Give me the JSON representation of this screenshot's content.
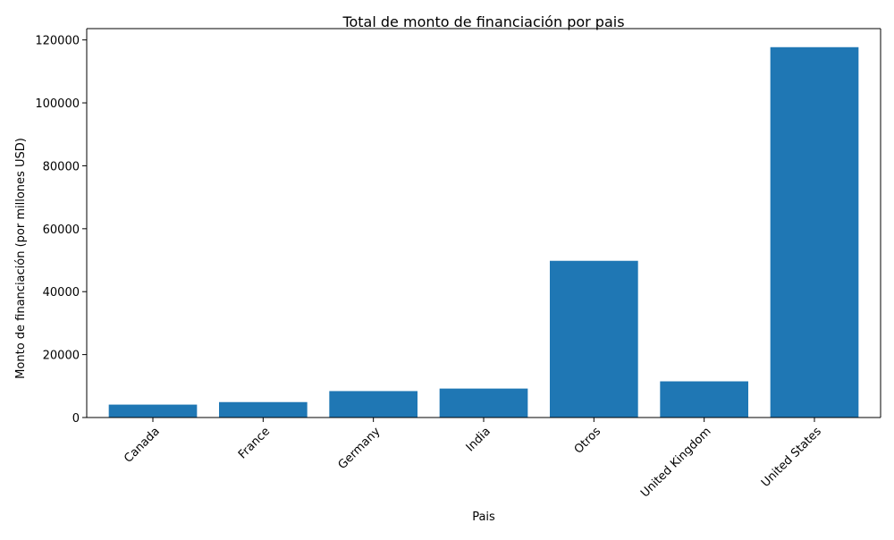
{
  "chart_data": {
    "type": "bar",
    "title": "Total de monto de financiación por pais",
    "xlabel": "Pais",
    "ylabel": "Monto de financiación (por millones USD)",
    "categories": [
      "Canada",
      "France",
      "Germany",
      "India",
      "Otros",
      "United Kingdom",
      "United States"
    ],
    "values": [
      4100,
      4900,
      8400,
      9200,
      49800,
      11500,
      117700
    ],
    "ylim": [
      0,
      123600
    ],
    "yticks": [
      0,
      20000,
      40000,
      60000,
      80000,
      100000,
      120000
    ],
    "bar_color": "#1f77b4",
    "grid": false,
    "legend": "none"
  }
}
